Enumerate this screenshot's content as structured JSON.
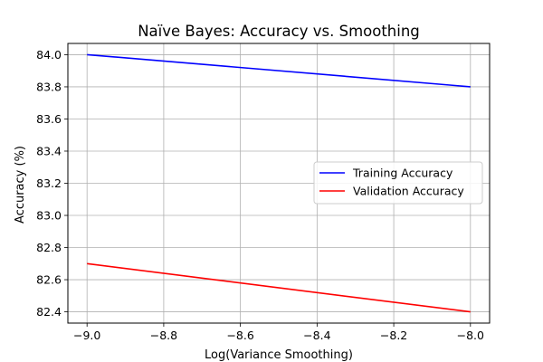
{
  "chart_data": {
    "type": "line",
    "title": "Naïve Bayes: Accuracy vs. Smoothing",
    "xlabel": "Log(Variance Smoothing)",
    "ylabel": "Accuracy (%)",
    "xlim": [
      -9.05,
      -7.95
    ],
    "ylim": [
      82.33,
      84.07
    ],
    "xticks": [
      -9.0,
      -8.8,
      -8.6,
      -8.4,
      -8.2,
      -8.0
    ],
    "xtick_labels": [
      "−9.0",
      "−8.8",
      "−8.6",
      "−8.4",
      "−8.2",
      "−8.0"
    ],
    "yticks": [
      82.4,
      82.6,
      82.8,
      83.0,
      83.2,
      83.4,
      83.6,
      83.8,
      84.0
    ],
    "ytick_labels": [
      "82.4",
      "82.6",
      "82.8",
      "83.0",
      "83.2",
      "83.4",
      "83.6",
      "83.8",
      "84.0"
    ],
    "grid": true,
    "legend_position": "center-right",
    "x": [
      -9.0,
      -8.0
    ],
    "series": [
      {
        "name": "Training Accuracy",
        "color": "#0000ff",
        "values": [
          84.0,
          83.8
        ]
      },
      {
        "name": "Validation Accuracy",
        "color": "#ff0000",
        "values": [
          82.7,
          82.4
        ]
      }
    ]
  }
}
